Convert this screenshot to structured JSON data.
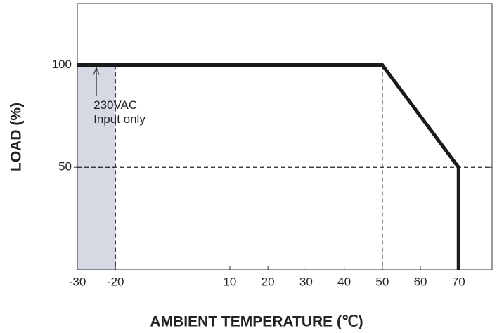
{
  "chart_data": {
    "type": "line",
    "xlabel": "AMBIENT TEMPERATURE (℃)",
    "ylabel": "LOAD (%)",
    "x": [
      -30,
      50,
      70,
      70
    ],
    "series": [
      {
        "color": "#1a1a1a",
        "values": [
          100,
          100,
          50,
          0
        ]
      }
    ],
    "xlim": [
      -30,
      78.8
    ],
    "xticks": [
      -30,
      -20,
      10,
      20,
      30,
      40,
      50,
      60,
      70
    ],
    "ylim": [
      0,
      130
    ],
    "yticks": [
      50,
      100
    ],
    "reference_lines": {
      "x": [
        -20,
        50
      ],
      "y": [
        50
      ]
    },
    "shaded_x": [
      -30,
      -20
    ],
    "annotation": [
      "230VAC",
      "Input only"
    ]
  }
}
